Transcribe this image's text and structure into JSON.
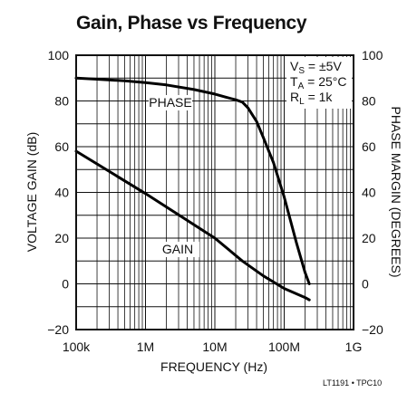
{
  "chart_data": {
    "type": "line",
    "title": "Gain, Phase vs Frequency",
    "xlabel": "FREQUENCY (Hz)",
    "ylabel": "VOLTAGE GAIN (dB)",
    "y2label": "PHASE MARGIN (DEGREES)",
    "x_scale": "log",
    "xlim": [
      100000,
      1000000000
    ],
    "x_ticks": [
      "100k",
      "1M",
      "10M",
      "100M",
      "1G"
    ],
    "ylim": [
      -20,
      100
    ],
    "y_ticks": [
      "100",
      "80",
      "60",
      "40",
      "20",
      "0",
      "−20"
    ],
    "y2lim": [
      -20,
      100
    ],
    "y2_ticks": [
      "100",
      "80",
      "60",
      "40",
      "20",
      "0",
      "−20"
    ],
    "grid": true,
    "conditions": [
      {
        "main": "V",
        "sub": "S",
        "rest": " = ±5V"
      },
      {
        "main": "T",
        "sub": "A",
        "rest": " = 25°C"
      },
      {
        "main": "R",
        "sub": "L",
        "rest": " = 1k"
      }
    ],
    "series": [
      {
        "name": "PHASE",
        "axis": "right",
        "x": [
          100000,
          200000,
          500000,
          1000000,
          2000000,
          5000000,
          10000000,
          15000000,
          20000000,
          25000000,
          30000000,
          40000000,
          50000000,
          70000000,
          100000000,
          150000000,
          200000000,
          230000000
        ],
        "values": [
          90,
          89.5,
          88.8,
          88,
          87,
          85,
          83,
          81.5,
          80.5,
          79.5,
          77,
          71,
          64,
          53,
          38,
          18,
          5,
          0
        ]
      },
      {
        "name": "GAIN",
        "axis": "left",
        "x": [
          100000,
          1000000,
          10000000,
          25000000,
          50000000,
          100000000,
          200000000,
          230000000
        ],
        "values": [
          58,
          39.5,
          20,
          10,
          3.5,
          -2,
          -6,
          -7
        ]
      }
    ],
    "credit": "LT1191 • TPC10"
  }
}
